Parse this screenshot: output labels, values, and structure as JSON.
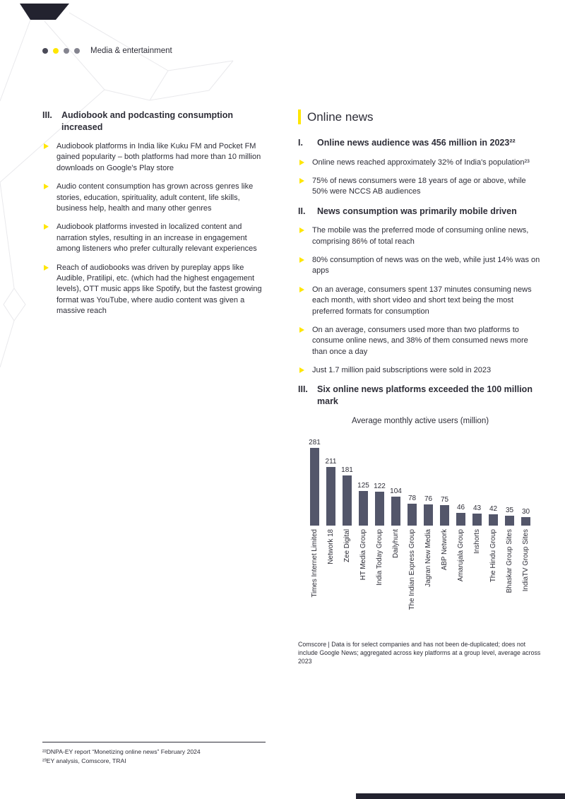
{
  "page": {
    "header": {
      "label": "Media & entertainment"
    },
    "left": {
      "heading_num": "III.",
      "heading": "Audiobook and podcasting consumption increased",
      "bullets": [
        "Audiobook platforms in India like Kuku FM and Pocket FM gained popularity – both platforms had more than 10 million downloads on Google's Play store",
        "Audio content consumption has grown across genres like stories, education, spirituality, adult content, life skills, business help, health and many other genres",
        "Audiobook platforms invested in localized content and narration styles, resulting in an increase in engagement among listeners who prefer culturally relevant experiences",
        "Reach of audiobooks was driven by pureplay apps like Audible, Pratilipi, etc. (which had the highest engagement levels), OTT music apps like Spotify, but the fastest growing format was YouTube, where audio content was given a massive reach"
      ]
    },
    "right": {
      "section_title": "Online news",
      "sections": [
        {
          "num": "I.",
          "heading": "Online news audience was 456 million in 2023²²",
          "bullets": [
            "Online news reached approximately 32% of India's population²³",
            "75% of news consumers were 18 years of age or above, while 50% were NCCS AB audiences"
          ]
        },
        {
          "num": "II.",
          "heading": "News consumption was primarily mobile driven",
          "bullets": [
            "The mobile was the preferred mode of consuming online news, comprising 86% of total reach",
            "80% consumption of news was on the web, while just 14% was on apps",
            "On an average, consumers spent 137 minutes consuming news each month, with short video and short text being the most preferred formats for consumption",
            "On an average, consumers used more than two platforms to consume online news, and 38% of them consumed news more than once a day",
            "Just 1.7 million paid subscriptions were sold in 2023"
          ]
        },
        {
          "num": "III.",
          "heading": "Six online news platforms exceeded the 100 million mark",
          "bullets": []
        }
      ],
      "source_note": "Comscore | Data is for select companies and has not been de-duplicated; does not include Google News; aggregated across key platforms at a group level, average across 2023"
    },
    "footnotes": [
      "²²DNPA-EY report “Monetizing online news” February 2024",
      "²³EY analysis, Comscore, TRAI"
    ]
  },
  "chart_data": {
    "type": "bar",
    "title": "Average monthly active users (million)",
    "categories": [
      "Times Internet Limited",
      "Network 18",
      "Zee Digital",
      "HT Media Group",
      "India Today Group",
      "Dailyhunt",
      "The Indian Express Group",
      "Jagran New Media",
      "ABP Network",
      "Amarujala Group",
      "Inshorts",
      "The Hindu Group",
      "Bhaskar Group Sites",
      "IndiaTV Group Sites"
    ],
    "values": [
      281,
      211,
      181,
      125,
      122,
      104,
      78,
      76,
      75,
      46,
      43,
      42,
      35,
      30
    ],
    "xlabel": "",
    "ylabel": "",
    "ylim": [
      0,
      300
    ],
    "grid": false,
    "legend": "none",
    "bar_color": "#53566a"
  },
  "colors": {
    "accent_yellow": "#ffe600",
    "text": "#2e2e38",
    "bar": "#53566a"
  }
}
